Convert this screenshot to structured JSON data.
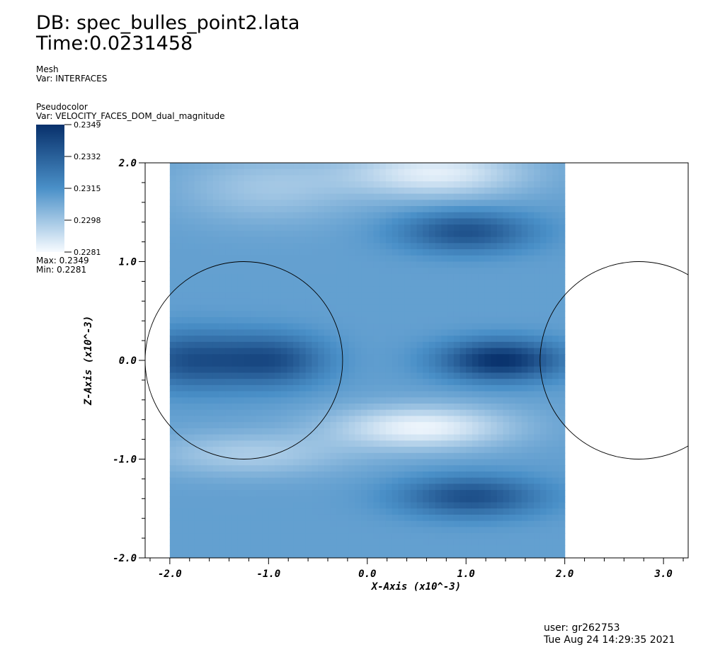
{
  "header": {
    "db": "DB: spec_bulles_point2.lata",
    "time": "Time:0.0231458"
  },
  "mesh_legend": {
    "plot": "Mesh",
    "var": "Var: INTERFACES"
  },
  "pseudocolor_legend": {
    "plot": "Pseudocolor",
    "var": "Var: VELOCITY_FACES_DOM_dual_magnitude",
    "ticks": [
      "0.2349",
      "0.2332",
      "0.2315",
      "0.2298",
      "0.2281"
    ],
    "max_text": "Max:  0.2349",
    "min_text": "Min:  0.2281",
    "color_high": "#08306b",
    "color_mid": "#4a90c8",
    "color_low": "#f7fbff"
  },
  "footer": {
    "user": "user: gr262753",
    "date": "Tue Aug 24 14:29:35 2021"
  },
  "chart_data": {
    "type": "heatmap",
    "xlabel": "X-Axis (x10^-3)",
    "ylabel": "Z-Axis (x10^-3)",
    "xlim": [
      -2.25,
      3.25
    ],
    "ylim": [
      -2.0,
      2.0
    ],
    "x_ticks": [
      {
        "value": -2.0,
        "label": "-2.0"
      },
      {
        "value": -1.0,
        "label": "-1.0"
      },
      {
        "value": 0.0,
        "label": "0.0"
      },
      {
        "value": 1.0,
        "label": "1.0"
      },
      {
        "value": 2.0,
        "label": "2.0"
      },
      {
        "value": 3.0,
        "label": "3.0"
      }
    ],
    "y_ticks": [
      {
        "value": 2.0,
        "label": "2.0"
      },
      {
        "value": 1.0,
        "label": "1.0"
      },
      {
        "value": 0.0,
        "label": "0.0"
      },
      {
        "value": -1.0,
        "label": "-1.0"
      },
      {
        "value": -2.0,
        "label": "-2.0"
      }
    ],
    "field_extent": {
      "x": [
        -2.0,
        2.0
      ],
      "z": [
        -2.0,
        2.0
      ]
    },
    "value_range": [
      0.2281,
      0.2349
    ],
    "grid_cells": [
      64,
      64
    ],
    "field_features": [
      {
        "x": -1.75,
        "z": 0.0,
        "rx": 0.7,
        "rz": 0.28,
        "value": 0.2338
      },
      {
        "x": -0.9,
        "z": 0.0,
        "rx": 0.5,
        "rz": 0.25,
        "value": 0.2333
      },
      {
        "x": 1.35,
        "z": 0.0,
        "rx": 0.6,
        "rz": 0.2,
        "value": 0.2349
      },
      {
        "x": 1.0,
        "z": 1.3,
        "rx": 0.65,
        "rz": 0.2,
        "value": 0.2337
      },
      {
        "x": 1.05,
        "z": -1.38,
        "rx": 0.7,
        "rz": 0.2,
        "value": 0.2338
      },
      {
        "x": 0.55,
        "z": -0.68,
        "rx": 0.9,
        "rz": 0.22,
        "value": 0.2283
      },
      {
        "x": 0.7,
        "z": 1.9,
        "rx": 0.9,
        "rz": 0.25,
        "value": 0.2285
      },
      {
        "x": -1.0,
        "z": 1.75,
        "rx": 0.9,
        "rz": 0.35,
        "value": 0.2298
      },
      {
        "x": -1.2,
        "z": -0.95,
        "rx": 1.0,
        "rz": 0.22,
        "value": 0.2296
      }
    ],
    "interfaces": [
      {
        "cx": -1.25,
        "cz": 0.0,
        "r": 1.0
      },
      {
        "cx": 2.75,
        "cz": 0.0,
        "r": 1.0
      }
    ]
  }
}
